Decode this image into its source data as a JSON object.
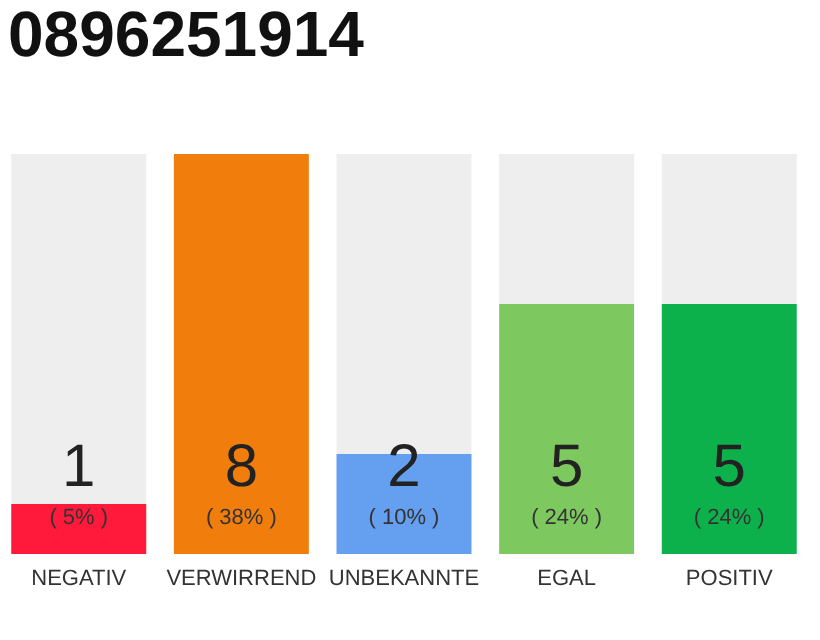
{
  "chart_data": {
    "type": "bar",
    "title": "0896251914",
    "categories": [
      "NEGATIV",
      "VERWIRREND",
      "UNBEKANNTE",
      "EGAL",
      "POSITIV"
    ],
    "stacked": true,
    "ylim": [
      0,
      8
    ],
    "tick_labels": "x",
    "grid": false,
    "series": [
      {
        "colors": [
          "#ff1a3c",
          "#f07d0c",
          "#659ff0",
          "#7ec95f",
          "#0db14b"
        ],
        "values": [
          1,
          8,
          2,
          5,
          5
        ],
        "value_labels": [
          "1",
          "8",
          "2",
          "5",
          "5"
        ]
      },
      {
        "color": "#eeeeee",
        "values": [
          7,
          0,
          6,
          3,
          3
        ],
        "value_labels": [
          null,
          null,
          null,
          null,
          null
        ]
      }
    ],
    "annotations": [
      "( 5% )",
      "( 38% )",
      "( 10% )",
      "( 24% )",
      "( 24% )"
    ]
  }
}
